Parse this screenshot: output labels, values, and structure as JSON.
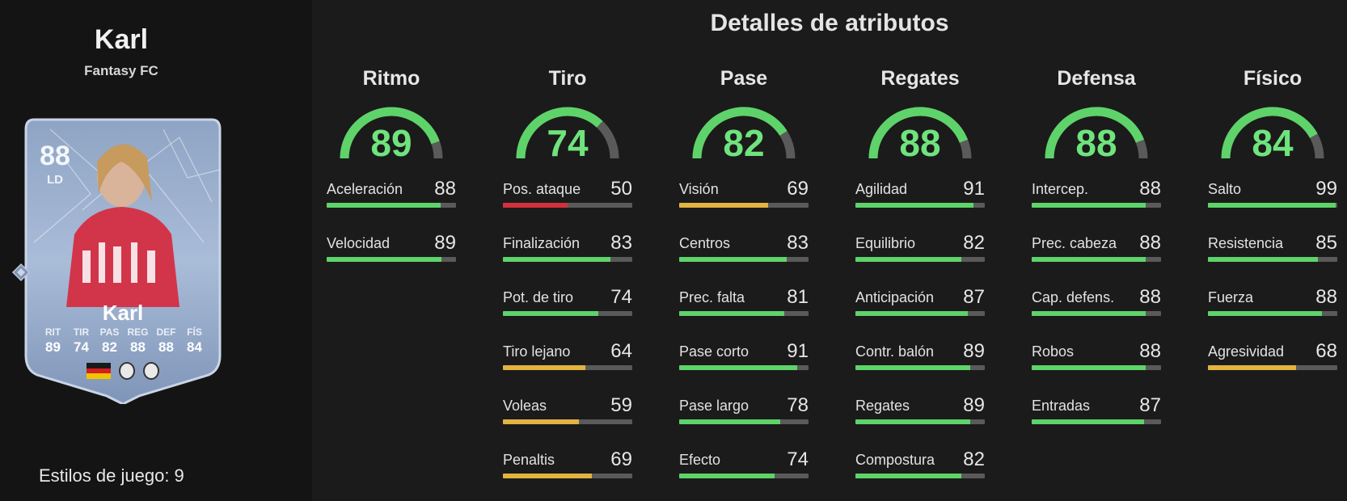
{
  "player": {
    "name": "Karl",
    "club": "Fantasy FC",
    "card": {
      "rating": "88",
      "position": "LD",
      "lastname": "Karl",
      "stats": [
        {
          "label": "RIT",
          "value": "89"
        },
        {
          "label": "TIR",
          "value": "74"
        },
        {
          "label": "PAS",
          "value": "82"
        },
        {
          "label": "REG",
          "value": "88"
        },
        {
          "label": "DEF",
          "value": "88"
        },
        {
          "label": "FÍS",
          "value": "84"
        }
      ],
      "flag_colors": [
        "#1a1a1a",
        "#d41f1f",
        "#f2c400"
      ]
    },
    "playstyles": "Estilos de juego: 9"
  },
  "title": "Detalles de atributos",
  "colors": {
    "green": "#5ed36a",
    "yellow": "#e3b341",
    "red": "#d4303c",
    "track": "#5a5a5a"
  },
  "categories": [
    {
      "name": "Ritmo",
      "value": 89,
      "attributes": [
        {
          "name": "Aceleración",
          "value": 88
        },
        {
          "name": "Velocidad",
          "value": 89
        }
      ]
    },
    {
      "name": "Tiro",
      "value": 74,
      "attributes": [
        {
          "name": "Pos. ataque",
          "value": 50
        },
        {
          "name": "Finalización",
          "value": 83
        },
        {
          "name": "Pot. de tiro",
          "value": 74
        },
        {
          "name": "Tiro lejano",
          "value": 64
        },
        {
          "name": "Voleas",
          "value": 59
        },
        {
          "name": "Penaltis",
          "value": 69
        }
      ]
    },
    {
      "name": "Pase",
      "value": 82,
      "attributes": [
        {
          "name": "Visión",
          "value": 69
        },
        {
          "name": "Centros",
          "value": 83
        },
        {
          "name": "Prec. falta",
          "value": 81
        },
        {
          "name": "Pase corto",
          "value": 91
        },
        {
          "name": "Pase largo",
          "value": 78
        },
        {
          "name": "Efecto",
          "value": 74
        }
      ]
    },
    {
      "name": "Regates",
      "value": 88,
      "attributes": [
        {
          "name": "Agilidad",
          "value": 91
        },
        {
          "name": "Equilibrio",
          "value": 82
        },
        {
          "name": "Anticipación",
          "value": 87
        },
        {
          "name": "Contr. balón",
          "value": 89
        },
        {
          "name": "Regates",
          "value": 89
        },
        {
          "name": "Compostura",
          "value": 82
        }
      ]
    },
    {
      "name": "Defensa",
      "value": 88,
      "attributes": [
        {
          "name": "Intercep.",
          "value": 88
        },
        {
          "name": "Prec. cabeza",
          "value": 88
        },
        {
          "name": "Cap. defens.",
          "value": 88
        },
        {
          "name": "Robos",
          "value": 88
        },
        {
          "name": "Entradas",
          "value": 87
        }
      ]
    },
    {
      "name": "Físico",
      "value": 84,
      "attributes": [
        {
          "name": "Salto",
          "value": 99
        },
        {
          "name": "Resistencia",
          "value": 85
        },
        {
          "name": "Fuerza",
          "value": 88
        },
        {
          "name": "Agresividad",
          "value": 68
        }
      ]
    }
  ]
}
